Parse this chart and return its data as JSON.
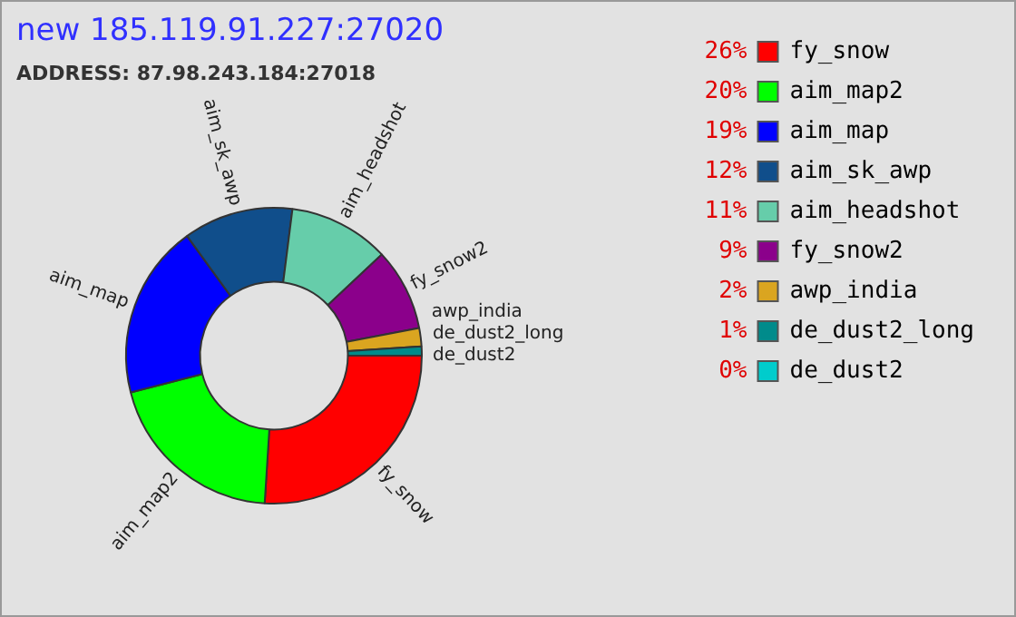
{
  "chart_data": {
    "type": "donut",
    "title": "new 185.119.91.227:27020",
    "subtitle": "ADDRESS: 87.98.243.184:27018",
    "categories": [
      "fy_snow",
      "aim_map2",
      "aim_map",
      "aim_sk_awp",
      "aim_headshot",
      "fy_snow2",
      "awp_india",
      "de_dust2_long",
      "de_dust2"
    ],
    "values": [
      26,
      20,
      19,
      12,
      11,
      9,
      2,
      1,
      0
    ],
    "value_labels": [
      "26%",
      "20%",
      "19%",
      "12%",
      "11%",
      "9%",
      "2%",
      "1%",
      "0%"
    ],
    "colors": [
      "#ff0000",
      "#00ff00",
      "#0000ff",
      "#104e8b",
      "#66cdaa",
      "#8b008b",
      "#daa520",
      "#008b8b",
      "#00cccc"
    ],
    "legend": "top right"
  }
}
